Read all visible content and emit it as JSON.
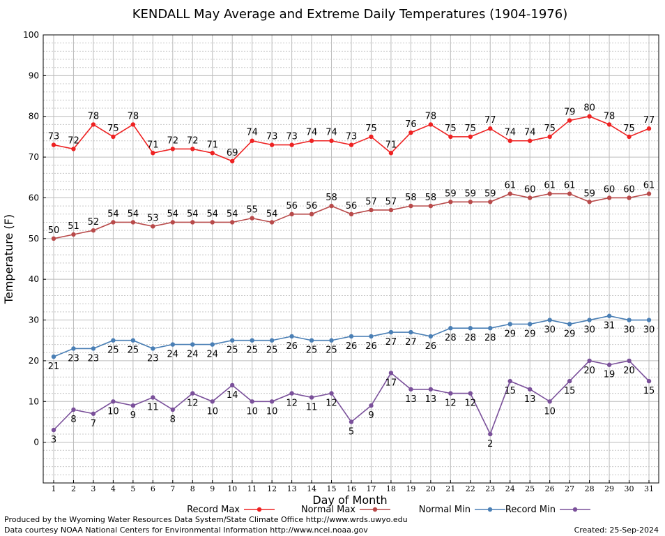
{
  "chart_data": {
    "type": "line",
    "title": "KENDALL May Average and Extreme Daily Temperatures (1904-1976)",
    "xlabel": "Day of Month",
    "ylabel": "Temperature (F)",
    "ylim": [
      -10,
      100
    ],
    "yticks": [
      0,
      10,
      20,
      30,
      40,
      50,
      60,
      70,
      80,
      90,
      100
    ],
    "x": [
      1,
      2,
      3,
      4,
      5,
      6,
      7,
      8,
      9,
      10,
      11,
      12,
      13,
      14,
      15,
      16,
      17,
      18,
      19,
      20,
      21,
      22,
      23,
      24,
      25,
      26,
      27,
      28,
      29,
      30,
      31
    ],
    "grid": true,
    "legend_position": "bottom",
    "series": [
      {
        "name": "Record Max",
        "color": "#ee2222",
        "label_pos": "above",
        "values": [
          73,
          72,
          78,
          75,
          78,
          71,
          72,
          72,
          71,
          69,
          74,
          73,
          73,
          74,
          74,
          73,
          75,
          71,
          76,
          78,
          75,
          75,
          77,
          74,
          74,
          75,
          79,
          80,
          78,
          75,
          77
        ]
      },
      {
        "name": "Normal Max",
        "color": "#b84a4a",
        "label_pos": "above",
        "values": [
          50,
          51,
          52,
          54,
          54,
          53,
          54,
          54,
          54,
          54,
          55,
          54,
          56,
          56,
          58,
          56,
          57,
          57,
          58,
          58,
          59,
          59,
          59,
          61,
          60,
          61,
          61,
          59,
          60,
          60,
          61
        ]
      },
      {
        "name": "Normal Min",
        "color": "#4a7fb5",
        "label_pos": "below",
        "values": [
          21,
          23,
          23,
          25,
          25,
          23,
          24,
          24,
          24,
          25,
          25,
          25,
          26,
          25,
          25,
          26,
          26,
          27,
          27,
          26,
          28,
          28,
          28,
          29,
          29,
          30,
          29,
          30,
          31,
          30,
          30
        ]
      },
      {
        "name": "Record Min",
        "color": "#7a509a",
        "label_pos": "below",
        "values": [
          3,
          8,
          7,
          10,
          9,
          11,
          8,
          12,
          10,
          14,
          10,
          10,
          12,
          11,
          12,
          5,
          9,
          17,
          13,
          13,
          12,
          12,
          2,
          15,
          13,
          10,
          15,
          20,
          19,
          20,
          15
        ]
      }
    ]
  },
  "footer": {
    "produced_by": "Produced by the Wyoming Water Resources Data System/State Climate Office http://www.wrds.uwyo.edu",
    "courtesy": "Data courtesy NOAA National Centers for Environmental Information http://www.ncei.noaa.gov",
    "created": "Created:  25-Sep-2024"
  }
}
